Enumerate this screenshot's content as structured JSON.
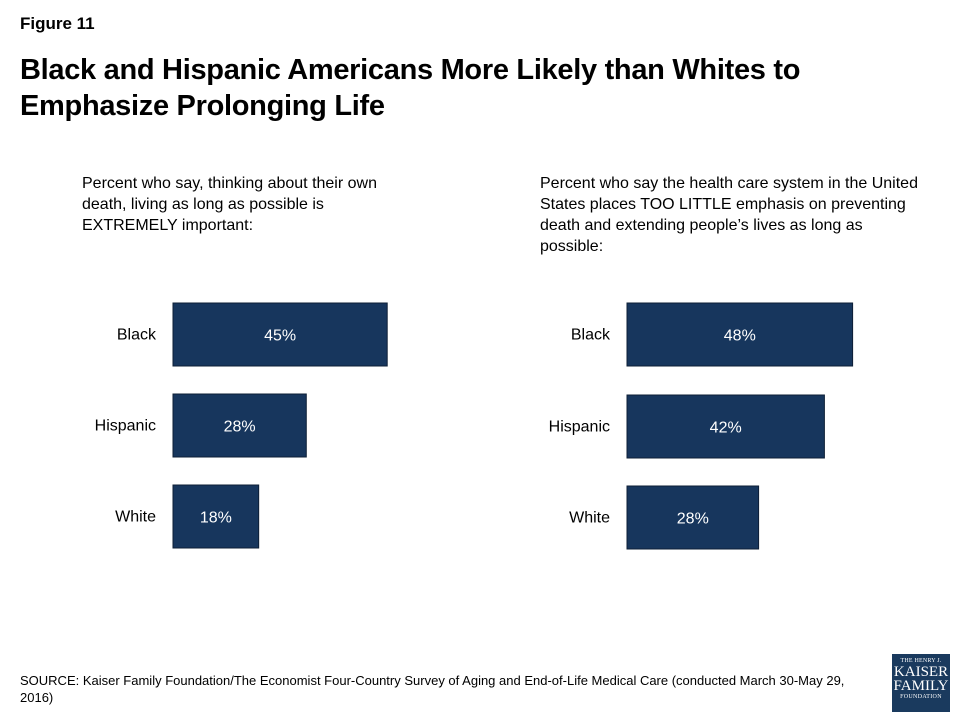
{
  "figure_label": "Figure 11",
  "title": "Black and Hispanic Americans More Likely than Whites to Emphasize Prolonging Life",
  "source": "SOURCE: Kaiser Family Foundation/The Economist Four-Country Survey of Aging and End-of-Life Medical Care (conducted March 30-May 29, 2016)",
  "logo": {
    "line1": "THE HENRY J.",
    "line2": "KAISER",
    "line3": "FAMILY",
    "line4": "FOUNDATION"
  },
  "colors": {
    "bar": "#17365d",
    "bar_text": "#ffffff",
    "logo_bg": "#1a3a5e"
  },
  "chart_data": [
    {
      "type": "bar",
      "orientation": "horizontal",
      "subtitle": "Percent who say, thinking about their own death, living as long as possible is EXTREMELY important:",
      "categories": [
        "Black",
        "Hispanic",
        "White"
      ],
      "values": [
        45,
        28,
        18
      ],
      "labels": [
        "45%",
        "28%",
        "18%"
      ]
    },
    {
      "type": "bar",
      "orientation": "horizontal",
      "subtitle": "Percent who say the health care system in the United States places TOO LITTLE emphasis on preventing death and extending people’s lives as long as possible:",
      "categories": [
        "Black",
        "Hispanic",
        "White"
      ],
      "values": [
        48,
        42,
        28
      ],
      "labels": [
        "48%",
        "42%",
        "28%"
      ]
    }
  ]
}
